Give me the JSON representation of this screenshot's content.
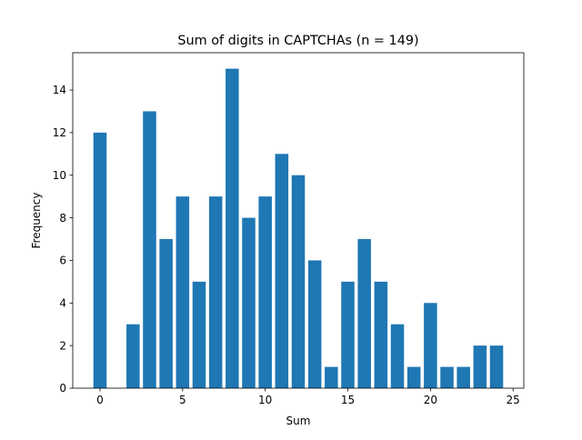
{
  "chart_data": {
    "type": "bar",
    "title": "Sum of digits in CAPTCHAs (n = 149)",
    "xlabel": "Sum",
    "ylabel": "Frequency",
    "xlim": [
      -1.65,
      25.65
    ],
    "ylim": [
      0,
      15.75
    ],
    "xticks": [
      0,
      5,
      10,
      15,
      20,
      25
    ],
    "yticks": [
      0,
      2,
      4,
      6,
      8,
      10,
      12,
      14
    ],
    "grid": false,
    "bar_color": "#1f77b4",
    "bars": [
      {
        "x": 0,
        "value": 12
      },
      {
        "x": 2,
        "value": 3
      },
      {
        "x": 3,
        "value": 13
      },
      {
        "x": 4,
        "value": 7
      },
      {
        "x": 5,
        "value": 9
      },
      {
        "x": 6,
        "value": 5
      },
      {
        "x": 7,
        "value": 9
      },
      {
        "x": 8,
        "value": 15
      },
      {
        "x": 9,
        "value": 8
      },
      {
        "x": 10,
        "value": 9
      },
      {
        "x": 11,
        "value": 11
      },
      {
        "x": 12,
        "value": 10
      },
      {
        "x": 13,
        "value": 6
      },
      {
        "x": 14,
        "value": 1
      },
      {
        "x": 15,
        "value": 5
      },
      {
        "x": 16,
        "value": 7
      },
      {
        "x": 17,
        "value": 5
      },
      {
        "x": 18,
        "value": 3
      },
      {
        "x": 19,
        "value": 1
      },
      {
        "x": 20,
        "value": 4
      },
      {
        "x": 21,
        "value": 1
      },
      {
        "x": 22,
        "value": 1
      },
      {
        "x": 23,
        "value": 2
      },
      {
        "x": 24,
        "value": 2
      }
    ]
  }
}
